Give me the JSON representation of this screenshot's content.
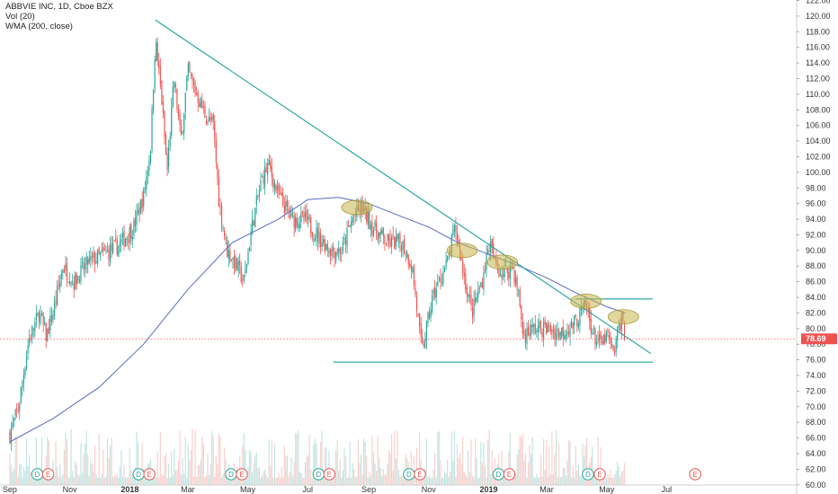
{
  "legend": {
    "symbol": "ABBVIE INC, 1D, Cboe BZX",
    "volume": "Vol (20)",
    "wma": "WMA (200, close)"
  },
  "colors": {
    "up": "#26a69a",
    "down": "#ef5350",
    "trendline": "#1fa39a",
    "wma": "#5c6bc0",
    "highlight": "#c8b44a",
    "price_tag": "#ef5350",
    "event_dividend": "#26a69a",
    "event_earnings": "#ef5350"
  },
  "chart_data": {
    "type": "candlestick",
    "title": "ABBVIE INC, 1D, Cboe BZX",
    "ylim": [
      59,
      122
    ],
    "y_ticks": [
      "60.00",
      "62.00",
      "64.00",
      "66.00",
      "68.00",
      "70.00",
      "72.00",
      "74.00",
      "76.00",
      "78.00",
      "80.00",
      "82.00",
      "84.00",
      "86.00",
      "88.00",
      "90.00",
      "92.00",
      "94.00",
      "96.00",
      "98.00",
      "100.00",
      "102.00",
      "104.00",
      "106.00",
      "108.00",
      "110.00",
      "112.00",
      "114.00",
      "116.00",
      "118.00",
      "120.00",
      "122.00"
    ],
    "x_labels": [
      "Sep",
      "Nov",
      "2018",
      "Mar",
      "May",
      "Jul",
      "Sep",
      "Nov",
      "2019",
      "Mar",
      "May",
      "Jul"
    ],
    "last_price": "78.69",
    "price_path": [
      [
        "2017-09-01",
        66.5
      ],
      [
        "2017-09-10",
        70.0
      ],
      [
        "2017-09-20",
        78.5
      ],
      [
        "2017-10-01",
        82.0
      ],
      [
        "2017-10-08",
        79.0
      ],
      [
        "2017-10-15",
        82.0
      ],
      [
        "2017-10-25",
        88.0
      ],
      [
        "2017-11-05",
        86.0
      ],
      [
        "2017-11-20",
        88.5
      ],
      [
        "2017-12-05",
        89.5
      ],
      [
        "2017-12-20",
        90.5
      ],
      [
        "2018-01-05",
        93.0
      ],
      [
        "2018-01-15",
        97.0
      ],
      [
        "2018-01-22",
        103.0
      ],
      [
        "2018-01-27",
        117.0
      ],
      [
        "2018-02-02",
        110.0
      ],
      [
        "2018-02-08",
        100.0
      ],
      [
        "2018-02-15",
        112.0
      ],
      [
        "2018-02-22",
        104.0
      ],
      [
        "2018-03-01",
        113.0
      ],
      [
        "2018-03-10",
        110.0
      ],
      [
        "2018-03-20",
        107.0
      ],
      [
        "2018-03-27",
        106.0
      ],
      [
        "2018-04-02",
        96.0
      ],
      [
        "2018-04-10",
        90.0
      ],
      [
        "2018-04-20",
        88.0
      ],
      [
        "2018-04-27",
        86.0
      ],
      [
        "2018-05-05",
        93.0
      ],
      [
        "2018-05-15",
        99.0
      ],
      [
        "2018-05-22",
        101.0
      ],
      [
        "2018-06-01",
        97.0
      ],
      [
        "2018-06-15",
        94.0
      ],
      [
        "2018-06-28",
        94.0
      ],
      [
        "2018-07-10",
        92.0
      ],
      [
        "2018-07-25",
        90.0
      ],
      [
        "2018-08-05",
        90.0
      ],
      [
        "2018-08-15",
        94.0
      ],
      [
        "2018-08-25",
        95.5
      ],
      [
        "2018-09-05",
        93.0
      ],
      [
        "2018-09-20",
        91.0
      ],
      [
        "2018-10-05",
        91.0
      ],
      [
        "2018-10-15",
        88.0
      ],
      [
        "2018-10-25",
        77.0
      ],
      [
        "2018-11-05",
        84.0
      ],
      [
        "2018-11-20",
        88.5
      ],
      [
        "2018-11-28",
        93.0
      ],
      [
        "2018-12-05",
        88.0
      ],
      [
        "2018-12-15",
        82.0
      ],
      [
        "2018-12-25",
        86.0
      ],
      [
        "2019-01-02",
        91.0
      ],
      [
        "2019-01-08",
        88.0
      ],
      [
        "2019-01-15",
        87.0
      ],
      [
        "2019-01-25",
        88.0
      ],
      [
        "2019-02-01",
        84.0
      ],
      [
        "2019-02-05",
        79.0
      ],
      [
        "2019-02-15",
        80.0
      ],
      [
        "2019-03-01",
        80.0
      ],
      [
        "2019-03-15",
        79.5
      ],
      [
        "2019-03-28",
        80.5
      ],
      [
        "2019-04-05",
        82.0
      ],
      [
        "2019-04-10",
        83.0
      ],
      [
        "2019-04-18",
        79.0
      ],
      [
        "2019-04-25",
        78.0
      ],
      [
        "2019-05-02",
        79.0
      ],
      [
        "2019-05-08",
        76.5
      ],
      [
        "2019-05-13",
        80.0
      ],
      [
        "2019-05-17",
        81.5
      ],
      [
        "2019-05-20",
        78.69
      ]
    ],
    "wma_200": [
      [
        "2017-09-01",
        65.5
      ],
      [
        "2017-10-15",
        68.5
      ],
      [
        "2017-12-01",
        72.5
      ],
      [
        "2018-01-15",
        78.0
      ],
      [
        "2018-03-01",
        85.0
      ],
      [
        "2018-04-15",
        91.0
      ],
      [
        "2018-06-01",
        94.0
      ],
      [
        "2018-07-01",
        96.5
      ],
      [
        "2018-08-01",
        96.8
      ],
      [
        "2018-09-01",
        96.0
      ],
      [
        "2018-10-01",
        94.5
      ],
      [
        "2018-11-01",
        93.0
      ],
      [
        "2018-12-01",
        91.0
      ],
      [
        "2019-01-01",
        89.5
      ],
      [
        "2019-02-01",
        88.0
      ],
      [
        "2019-03-01",
        86.5
      ],
      [
        "2019-04-01",
        84.5
      ],
      [
        "2019-05-01",
        82.8
      ],
      [
        "2019-05-20",
        82.0
      ]
    ],
    "trendlines": [
      {
        "from": [
          "2018-01-27",
          119.5
        ],
        "to": [
          "2019-06-15",
          76.8
        ]
      },
      {
        "from": [
          "2018-07-27",
          75.7
        ],
        "to": [
          "2019-06-17",
          75.7
        ]
      },
      {
        "from": [
          "2019-03-30",
          83.8
        ],
        "to": [
          "2019-06-17",
          83.8
        ]
      }
    ],
    "highlights": [
      [
        "2018-08-20",
        95.5
      ],
      [
        "2018-12-05",
        90.0
      ],
      [
        "2019-01-15",
        88.5
      ],
      [
        "2019-04-10",
        83.5
      ],
      [
        "2019-05-18",
        81.5
      ]
    ],
    "events": [
      [
        "2017-09-29",
        "D"
      ],
      [
        "2017-10-10",
        "E"
      ],
      [
        "2018-01-10",
        "D"
      ],
      [
        "2018-01-21",
        "E"
      ],
      [
        "2018-04-14",
        "D"
      ],
      [
        "2018-04-25",
        "E"
      ],
      [
        "2018-07-12",
        "D"
      ],
      [
        "2018-07-23",
        "E"
      ],
      [
        "2018-10-12",
        "D"
      ],
      [
        "2018-10-23",
        "E"
      ],
      [
        "2019-01-11",
        "D"
      ],
      [
        "2019-01-22",
        "E"
      ],
      [
        "2019-04-12",
        "D"
      ],
      [
        "2019-04-24",
        "E"
      ],
      [
        "2019-07-30",
        "E"
      ]
    ]
  }
}
